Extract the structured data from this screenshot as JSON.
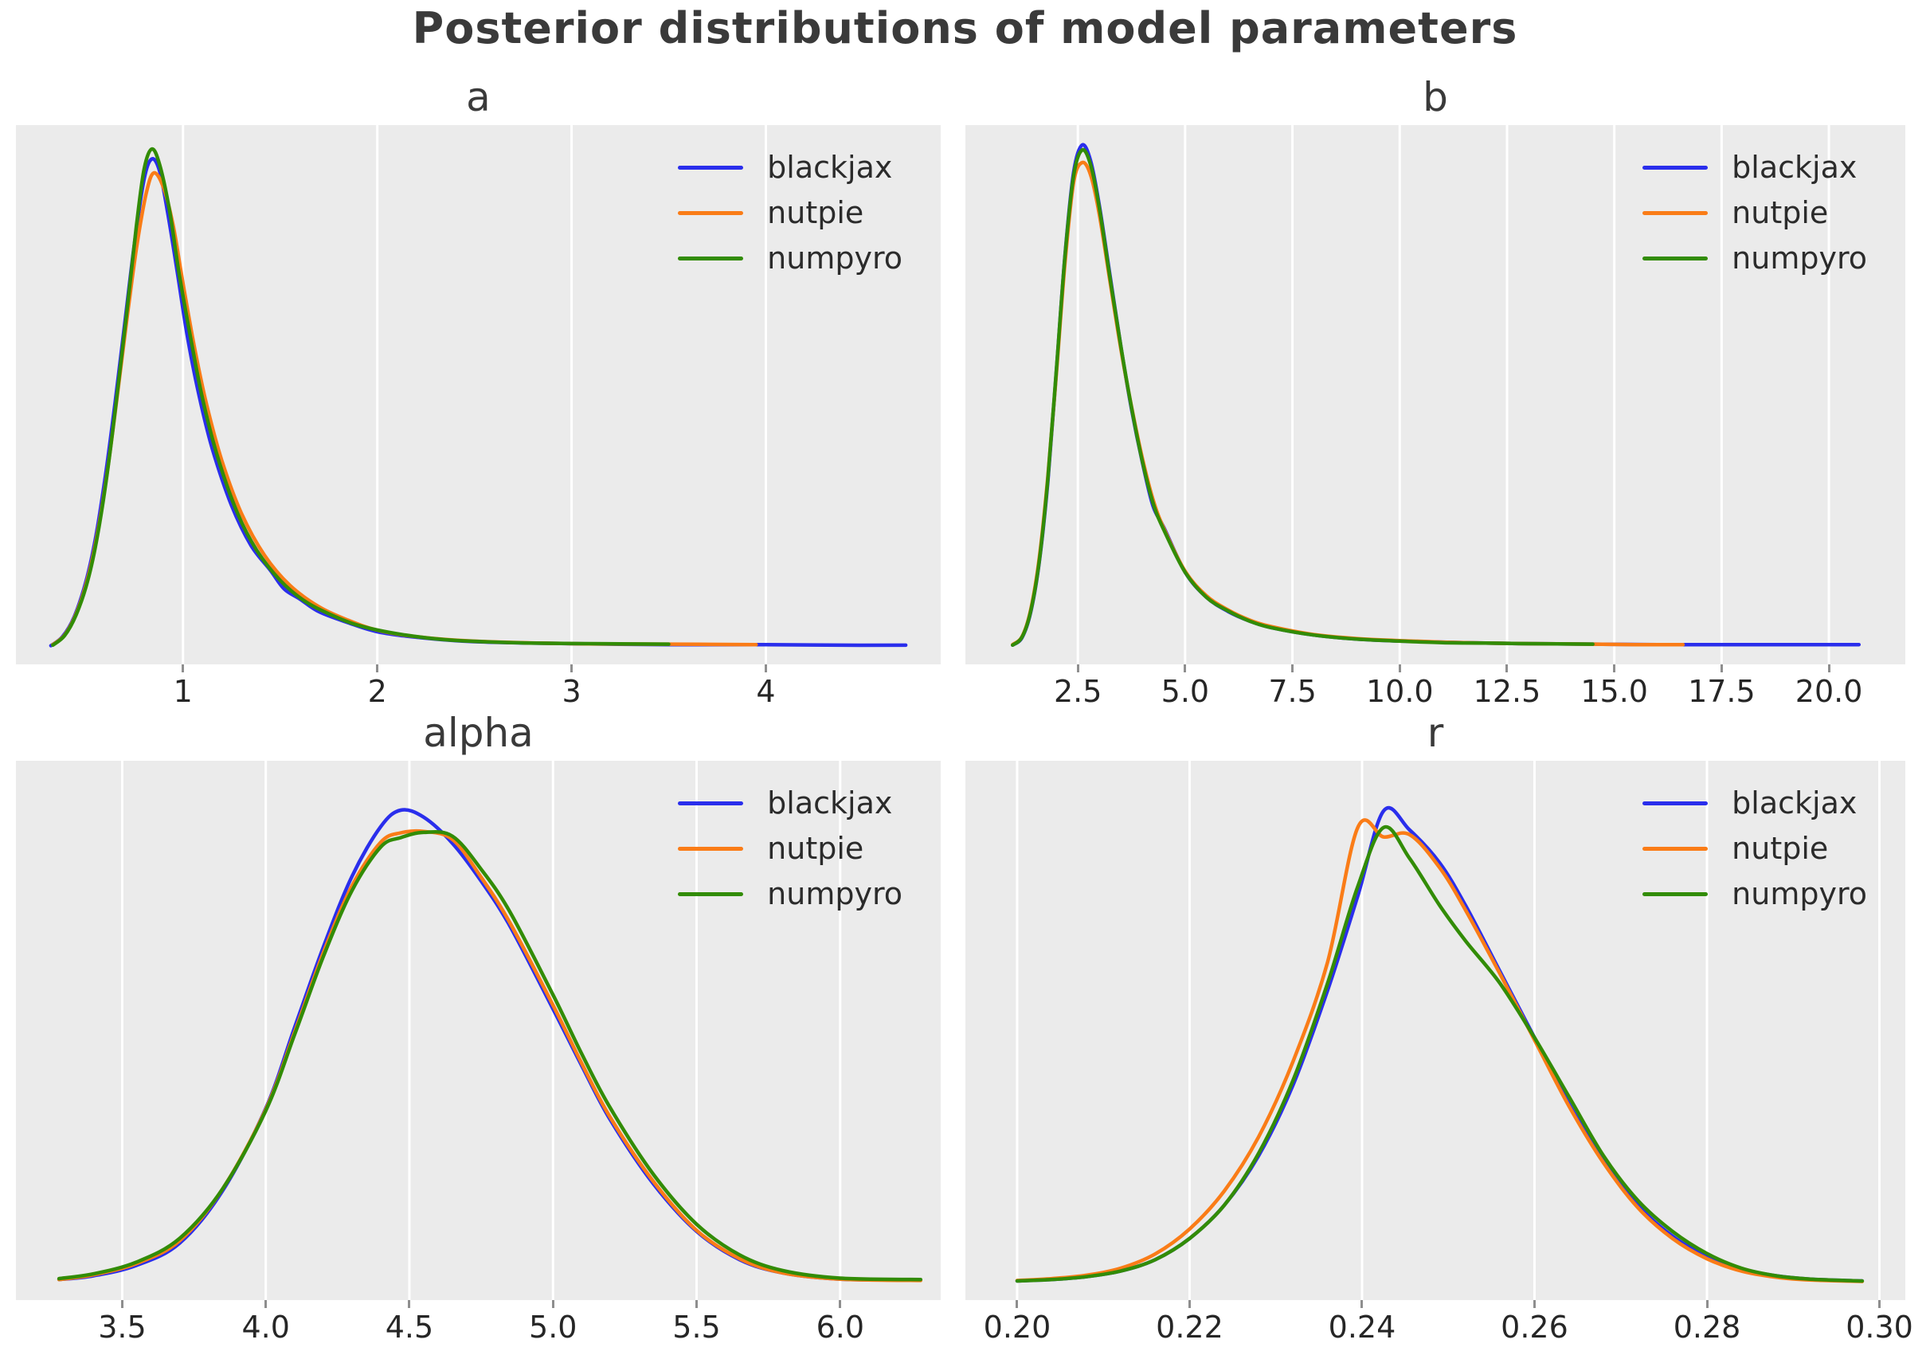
{
  "figure": {
    "title": "Posterior distributions of model parameters"
  },
  "legend": {
    "labels": [
      "blackjax",
      "nutpie",
      "numpyro"
    ]
  },
  "colors": {
    "blackjax": "#2a2eec",
    "nutpie": "#fa7c17",
    "numpyro": "#328c06",
    "panel_bg": "#ebebeb",
    "gridline": "#ffffff",
    "tick": "#8e8e8e",
    "tick_label": "#262626",
    "title": "#3a3a3a"
  },
  "chart_data": {
    "type": "line",
    "title": "Posterior distributions of model parameters",
    "ylabel": "",
    "grid": "vertical-only",
    "legend_position": "upper-right-inside",
    "y_units": "density normalized to each panel maximum",
    "panels": [
      {
        "param": "a",
        "title": "a",
        "xlim": [
          0.14,
          4.9
        ],
        "xticks": [
          1,
          2,
          3,
          4
        ],
        "xtick_labels": [
          "1",
          "2",
          "3",
          "4"
        ],
        "series": [
          {
            "name": "blackjax",
            "x": [
              0.32,
              0.38,
              0.44,
              0.5,
              0.55,
              0.6,
              0.65,
              0.7,
              0.75,
              0.8,
              0.84,
              0.88,
              0.92,
              0.97,
              1.02,
              1.08,
              1.15,
              1.25,
              1.35,
              1.45,
              1.52,
              1.6,
              1.7,
              1.85,
              2.0,
              2.2,
              2.5,
              3.0,
              3.5,
              4.0,
              4.4,
              4.72
            ],
            "y": [
              0.004,
              0.022,
              0.062,
              0.132,
              0.22,
              0.343,
              0.49,
              0.65,
              0.81,
              0.94,
              0.98,
              0.955,
              0.875,
              0.755,
              0.63,
              0.51,
              0.4,
              0.285,
              0.205,
              0.155,
              0.118,
              0.098,
              0.072,
              0.05,
              0.032,
              0.021,
              0.012,
              0.008,
              0.006,
              0.006,
              0.005,
              0.005
            ]
          },
          {
            "name": "nutpie",
            "x": [
              0.33,
              0.39,
              0.45,
              0.51,
              0.56,
              0.61,
              0.66,
              0.71,
              0.76,
              0.81,
              0.85,
              0.9,
              0.95,
              1.0,
              1.06,
              1.12,
              1.2,
              1.3,
              1.42,
              1.55,
              1.7,
              1.85,
              2.0,
              2.2,
              2.5,
              3.0,
              3.5,
              3.95
            ],
            "y": [
              0.006,
              0.025,
              0.068,
              0.14,
              0.23,
              0.352,
              0.5,
              0.655,
              0.8,
              0.91,
              0.952,
              0.922,
              0.845,
              0.73,
              0.6,
              0.49,
              0.375,
              0.27,
              0.185,
              0.125,
              0.082,
              0.055,
              0.035,
              0.022,
              0.013,
              0.008,
              0.007,
              0.006
            ]
          },
          {
            "name": "numpyro",
            "x": [
              0.33,
              0.39,
              0.45,
              0.51,
              0.56,
              0.61,
              0.66,
              0.71,
              0.76,
              0.8,
              0.84,
              0.88,
              0.93,
              0.98,
              1.04,
              1.1,
              1.18,
              1.28,
              1.38,
              1.5,
              1.62,
              1.75,
              1.9,
              2.1,
              2.35,
              2.7,
              3.1,
              3.5
            ],
            "y": [
              0.005,
              0.024,
              0.066,
              0.135,
              0.225,
              0.35,
              0.505,
              0.67,
              0.845,
              0.96,
              1.0,
              0.968,
              0.878,
              0.75,
              0.62,
              0.5,
              0.38,
              0.27,
              0.195,
              0.135,
              0.095,
              0.068,
              0.045,
              0.028,
              0.016,
              0.01,
              0.008,
              0.007
            ]
          }
        ]
      },
      {
        "param": "b",
        "title": "b",
        "xlim": [
          -0.12,
          21.78
        ],
        "xticks": [
          2.5,
          5.0,
          7.5,
          10.0,
          12.5,
          15.0,
          17.5,
          20.0
        ],
        "xtick_labels": [
          "2.5",
          "5.0",
          "7.5",
          "10.0",
          "12.5",
          "15.0",
          "17.5",
          "20.0"
        ],
        "series": [
          {
            "name": "blackjax",
            "x": [
              0.98,
              1.2,
              1.4,
              1.6,
              1.8,
              2.0,
              2.2,
              2.4,
              2.6,
              2.8,
              3.0,
              3.25,
              3.5,
              3.75,
              4.0,
              4.25,
              4.5,
              5.0,
              5.5,
              6.0,
              6.5,
              7.0,
              8.0,
              9.0,
              10.0,
              11.0,
              12.0,
              13.0,
              14.5,
              16.0,
              18.0,
              20.7
            ],
            "y": [
              0.005,
              0.02,
              0.07,
              0.17,
              0.33,
              0.55,
              0.78,
              0.945,
              1.0,
              0.968,
              0.88,
              0.74,
              0.6,
              0.475,
              0.37,
              0.282,
              0.24,
              0.15,
              0.1,
              0.072,
              0.053,
              0.04,
              0.025,
              0.017,
              0.013,
              0.011,
              0.009,
              0.008,
              0.007,
              0.006,
              0.006,
              0.006
            ]
          },
          {
            "name": "nutpie",
            "x": [
              0.98,
              1.2,
              1.4,
              1.6,
              1.8,
              2.0,
              2.2,
              2.4,
              2.6,
              2.8,
              3.0,
              3.25,
              3.5,
              3.75,
              4.0,
              4.25,
              4.5,
              5.0,
              5.5,
              6.0,
              6.5,
              7.0,
              8.0,
              9.0,
              10.0,
              11.0,
              12.0,
              13.0,
              14.5,
              15.5,
              16.6
            ],
            "y": [
              0.006,
              0.022,
              0.075,
              0.178,
              0.34,
              0.545,
              0.765,
              0.925,
              0.965,
              0.94,
              0.862,
              0.728,
              0.595,
              0.48,
              0.378,
              0.295,
              0.238,
              0.152,
              0.103,
              0.075,
              0.055,
              0.042,
              0.026,
              0.018,
              0.014,
              0.011,
              0.009,
              0.008,
              0.007,
              0.006,
              0.006
            ]
          },
          {
            "name": "numpyro",
            "x": [
              0.98,
              1.2,
              1.4,
              1.6,
              1.8,
              2.0,
              2.2,
              2.4,
              2.6,
              2.8,
              3.0,
              3.25,
              3.5,
              3.75,
              4.0,
              4.25,
              4.5,
              5.0,
              5.5,
              6.0,
              6.5,
              7.0,
              8.0,
              9.0,
              10.0,
              11.0,
              12.0,
              13.0,
              14.5
            ],
            "y": [
              0.005,
              0.021,
              0.072,
              0.172,
              0.335,
              0.552,
              0.778,
              0.938,
              0.99,
              0.96,
              0.875,
              0.735,
              0.6,
              0.478,
              0.372,
              0.288,
              0.235,
              0.15,
              0.1,
              0.073,
              0.053,
              0.04,
              0.025,
              0.017,
              0.013,
              0.01,
              0.009,
              0.008,
              0.007
            ]
          }
        ]
      },
      {
        "param": "alpha",
        "title": "alpha",
        "xlim": [
          3.13,
          6.35
        ],
        "xticks": [
          3.5,
          4.0,
          4.5,
          5.0,
          5.5,
          6.0
        ],
        "xtick_labels": [
          "3.5",
          "4.0",
          "4.5",
          "5.0",
          "5.5",
          "6.0"
        ],
        "series": [
          {
            "name": "blackjax",
            "x": [
              3.28,
              3.4,
              3.55,
              3.7,
              3.85,
              4.0,
              4.1,
              4.2,
              4.3,
              4.4,
              4.47,
              4.55,
              4.65,
              4.75,
              4.85,
              5.0,
              5.1,
              5.2,
              5.35,
              5.5,
              5.65,
              5.8,
              6.0,
              6.28
            ],
            "y": [
              0.008,
              0.016,
              0.038,
              0.085,
              0.196,
              0.37,
              0.54,
              0.71,
              0.86,
              0.965,
              1.0,
              0.985,
              0.93,
              0.85,
              0.755,
              0.58,
              0.46,
              0.345,
              0.21,
              0.11,
              0.05,
              0.022,
              0.009,
              0.007
            ]
          },
          {
            "name": "nutpie",
            "x": [
              3.28,
              3.4,
              3.55,
              3.7,
              3.85,
              4.0,
              4.1,
              4.2,
              4.3,
              4.4,
              4.47,
              4.55,
              4.65,
              4.75,
              4.85,
              5.0,
              5.1,
              5.2,
              5.35,
              5.5,
              5.65,
              5.8,
              6.0,
              6.28
            ],
            "y": [
              0.008,
              0.018,
              0.042,
              0.09,
              0.2,
              0.368,
              0.53,
              0.698,
              0.84,
              0.932,
              0.952,
              0.955,
              0.938,
              0.858,
              0.762,
              0.588,
              0.465,
              0.35,
              0.215,
              0.112,
              0.052,
              0.022,
              0.009,
              0.006
            ]
          },
          {
            "name": "numpyro",
            "x": [
              3.28,
              3.4,
              3.55,
              3.7,
              3.85,
              4.0,
              4.1,
              4.2,
              4.3,
              4.4,
              4.47,
              4.55,
              4.65,
              4.75,
              4.85,
              5.0,
              5.1,
              5.2,
              5.35,
              5.5,
              5.65,
              5.8,
              6.0,
              6.28
            ],
            "y": [
              0.01,
              0.02,
              0.045,
              0.095,
              0.2,
              0.365,
              0.525,
              0.69,
              0.83,
              0.922,
              0.942,
              0.953,
              0.945,
              0.875,
              0.785,
              0.61,
              0.485,
              0.37,
              0.23,
              0.125,
              0.06,
              0.027,
              0.011,
              0.008
            ]
          }
        ]
      },
      {
        "param": "r",
        "title": "r",
        "xlim": [
          0.194,
          0.303
        ],
        "xticks": [
          0.2,
          0.22,
          0.24,
          0.26,
          0.28,
          0.3
        ],
        "xtick_labels": [
          "0.20",
          "0.22",
          "0.24",
          "0.26",
          "0.28",
          "0.30"
        ],
        "series": [
          {
            "name": "blackjax",
            "x": [
              0.2,
              0.204,
              0.208,
              0.212,
              0.216,
              0.22,
              0.224,
              0.228,
              0.232,
              0.236,
              0.2395,
              0.2425,
              0.2455,
              0.249,
              0.252,
              0.256,
              0.26,
              0.264,
              0.268,
              0.272,
              0.276,
              0.28,
              0.284,
              0.288,
              0.292,
              0.298
            ],
            "y": [
              0.005,
              0.008,
              0.014,
              0.026,
              0.05,
              0.095,
              0.165,
              0.27,
              0.42,
              0.62,
              0.82,
              1.0,
              0.96,
              0.89,
              0.8,
              0.66,
              0.52,
              0.38,
              0.26,
              0.165,
              0.1,
              0.057,
              0.03,
              0.016,
              0.009,
              0.005
            ]
          },
          {
            "name": "nutpie",
            "x": [
              0.2,
              0.204,
              0.208,
              0.212,
              0.216,
              0.22,
              0.224,
              0.228,
              0.232,
              0.236,
              0.2395,
              0.2425,
              0.2455,
              0.249,
              0.252,
              0.256,
              0.26,
              0.264,
              0.268,
              0.272,
              0.276,
              0.28,
              0.284,
              0.288,
              0.292,
              0.298
            ],
            "y": [
              0.006,
              0.01,
              0.017,
              0.032,
              0.062,
              0.115,
              0.195,
              0.31,
              0.47,
              0.68,
              0.965,
              0.945,
              0.95,
              0.88,
              0.79,
              0.655,
              0.515,
              0.375,
              0.255,
              0.16,
              0.095,
              0.052,
              0.026,
              0.013,
              0.007,
              0.004
            ]
          },
          {
            "name": "numpyro",
            "x": [
              0.2,
              0.204,
              0.208,
              0.212,
              0.216,
              0.22,
              0.224,
              0.228,
              0.232,
              0.236,
              0.2395,
              0.2425,
              0.2455,
              0.249,
              0.252,
              0.256,
              0.26,
              0.264,
              0.268,
              0.272,
              0.276,
              0.28,
              0.284,
              0.288,
              0.292,
              0.298
            ],
            "y": [
              0.005,
              0.008,
              0.014,
              0.026,
              0.05,
              0.095,
              0.165,
              0.275,
              0.43,
              0.635,
              0.84,
              0.965,
              0.9,
              0.8,
              0.725,
              0.635,
              0.52,
              0.395,
              0.27,
              0.175,
              0.11,
              0.063,
              0.032,
              0.016,
              0.009,
              0.005
            ]
          }
        ]
      }
    ]
  }
}
